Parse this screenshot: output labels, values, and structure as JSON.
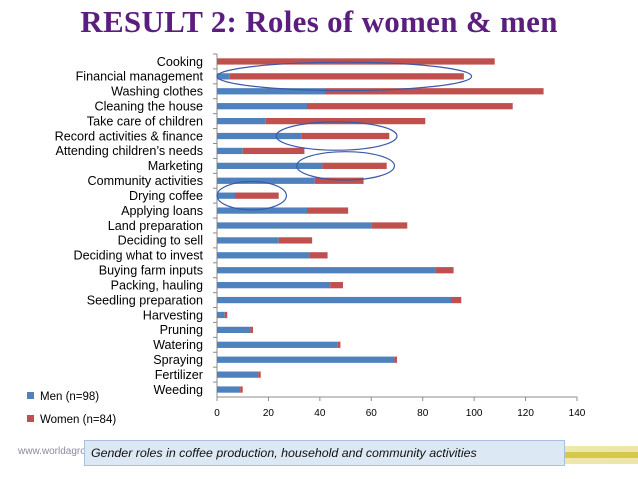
{
  "title": "RESULT 2: Roles of women & men",
  "caption": "Gender roles in coffee production, household and community activities",
  "footer_url": "www.worldagro",
  "colors": {
    "title": "#5b1e7f",
    "men": "#4f81bd",
    "women": "#c0504d",
    "highlight": "#3b5aa8"
  },
  "chart_data": {
    "type": "bar",
    "orientation": "horizontal",
    "stacked": true,
    "categories": [
      "Cooking",
      "Financial management",
      "Washing clothes",
      "Cleaning the house",
      "Take care of children",
      "Record activities & finance",
      "Attending children’s needs",
      "Marketing",
      "Community activities",
      "Drying coffee",
      "Applying loans",
      "Land preparation",
      "Deciding to sell",
      "Deciding what to invest",
      "Buying farm inputs",
      "Packing, hauling",
      "Seedling preparation",
      "Harvesting",
      "Pruning",
      "Watering",
      "Spraying",
      "Fertilizer",
      "Weeding"
    ],
    "series": [
      {
        "name": "Men (n=98)",
        "values": [
          0,
          5,
          42,
          35,
          19,
          33,
          10,
          41,
          38,
          7,
          35,
          60,
          24,
          36,
          85,
          44,
          91,
          3,
          13,
          47,
          69,
          16,
          9
        ]
      },
      {
        "name": "Women (n=84)",
        "values": [
          108,
          91,
          85,
          80,
          62,
          34,
          24,
          25,
          19,
          17,
          16,
          14,
          13,
          7,
          7,
          5,
          4,
          1,
          1,
          1,
          1,
          1,
          1
        ]
      }
    ],
    "xlim": [
      0,
      140
    ],
    "xticks": [
      0,
      20,
      40,
      60,
      80,
      100,
      120,
      140
    ],
    "legend": [
      "Men (n=98)",
      "Women (n=84)"
    ],
    "legend_position": "bottom-left",
    "highlighted_categories": [
      "Financial management",
      "Record activities & finance",
      "Marketing",
      "Drying coffee"
    ]
  }
}
